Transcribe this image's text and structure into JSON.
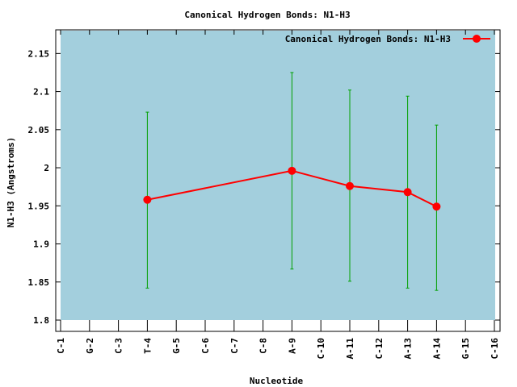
{
  "chart_data": {
    "type": "line",
    "title": "Canonical Hydrogen Bonds: N1-H3",
    "xlabel": "Nucleotide",
    "ylabel": "N1-H3 (Angstroms)",
    "ylim": [
      1.8,
      2.18
    ],
    "yticks": [
      "1.8",
      "1.85",
      "1.9",
      "1.95",
      "2",
      "2.05",
      "2.1",
      "2.15"
    ],
    "categories": [
      "C-1",
      "G-2",
      "C-3",
      "T-4",
      "G-5",
      "C-6",
      "C-7",
      "C-8",
      "A-9",
      "C-10",
      "A-11",
      "C-12",
      "A-13",
      "A-14",
      "G-15",
      "C-16"
    ],
    "series": [
      {
        "name": "Canonical Hydrogen Bonds: N1-H3",
        "color": "#ff0000",
        "points": [
          {
            "x": "T-4",
            "y": 1.958,
            "err_low": 1.842,
            "err_high": 2.073
          },
          {
            "x": "A-9",
            "y": 1.996,
            "err_low": 1.867,
            "err_high": 2.125
          },
          {
            "x": "A-11",
            "y": 1.976,
            "err_low": 1.851,
            "err_high": 2.102
          },
          {
            "x": "A-13",
            "y": 1.968,
            "err_low": 1.842,
            "err_high": 2.094
          },
          {
            "x": "A-14",
            "y": 1.949,
            "err_low": 1.839,
            "err_high": 2.056
          }
        ]
      }
    ],
    "errorbar_color": "#00a000",
    "plot_background": "#a3cfdd",
    "grid": false,
    "legend_position": "top-right"
  }
}
